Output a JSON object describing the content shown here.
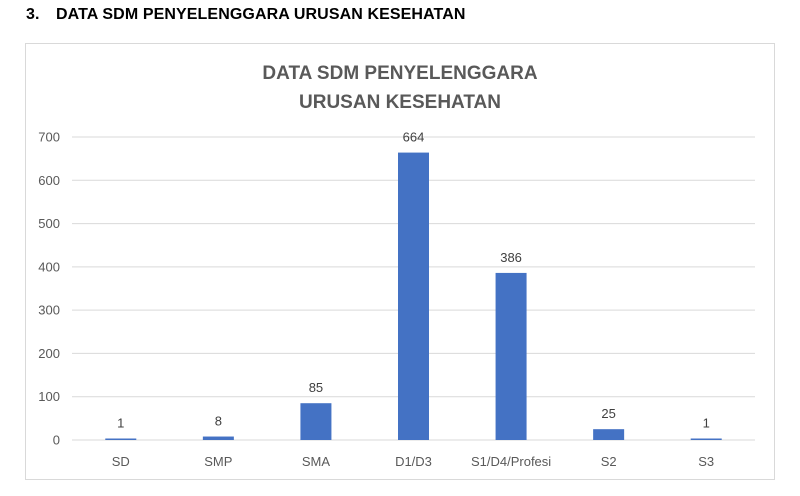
{
  "section": {
    "number": "3.",
    "title": "DATA SDM PENYELENGGARA URUSAN KESEHATAN"
  },
  "chart_data": {
    "type": "bar",
    "title_lines": [
      "DATA SDM PENYELENGGARA",
      "URUSAN KESEHATAN"
    ],
    "categories": [
      "SD",
      "SMP",
      "SMA",
      "D1/D3",
      "S1/D4/Profesi",
      "S2",
      "S3"
    ],
    "values": [
      1,
      8,
      85,
      664,
      386,
      25,
      1
    ],
    "ylim": [
      0,
      700
    ],
    "yticks": [
      0,
      100,
      200,
      300,
      400,
      500,
      600,
      700
    ],
    "grid": true,
    "data_labels": true,
    "bar_color": "#4472c4"
  }
}
